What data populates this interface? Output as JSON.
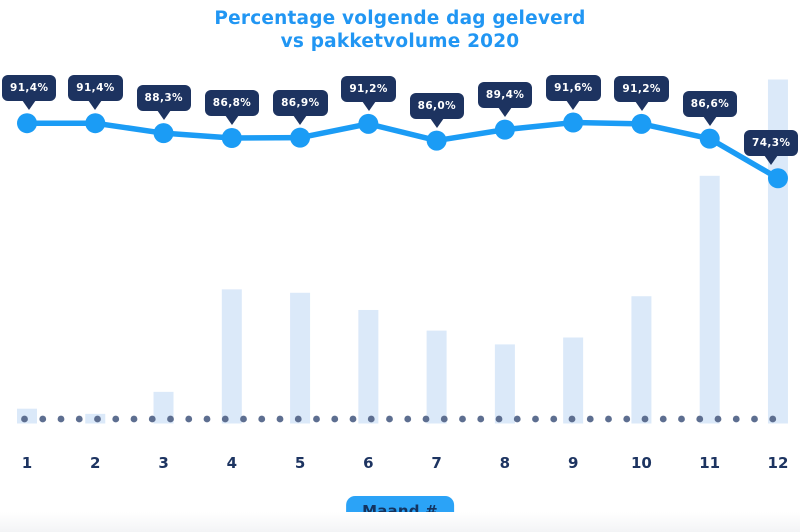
{
  "title": {
    "line1": "Percentage volgende dag geleverd",
    "line2": "vs pakketvolume 2020"
  },
  "x_axis": {
    "badge_label": "Maand #",
    "tick_labels": [
      "1",
      "2",
      "3",
      "4",
      "5",
      "6",
      "7",
      "8",
      "9",
      "10",
      "11",
      "12"
    ]
  },
  "chart_data": {
    "type": "line",
    "title": "Percentage volgende dag geleverd vs pakketvolume 2020",
    "xlabel": "Maand #",
    "ylabel": "",
    "categories": [
      1,
      2,
      3,
      4,
      5,
      6,
      7,
      8,
      9,
      10,
      11,
      12
    ],
    "series": [
      {
        "name": "Percentage volgende dag geleverd",
        "type": "line",
        "unit": "%",
        "values": [
          91.4,
          91.4,
          88.3,
          86.8,
          86.9,
          91.2,
          86.0,
          89.4,
          91.6,
          91.2,
          86.6,
          74.3
        ],
        "point_labels": [
          "91,4%",
          "91,4%",
          "88,3%",
          "86,8%",
          "86,9%",
          "91,2%",
          "86,0%",
          "89,4%",
          "91,6%",
          "91,2%",
          "86,6%",
          "74,3%"
        ],
        "axis_range": [
          0,
          100
        ]
      },
      {
        "name": "Pakketvolume 2020",
        "type": "bar",
        "unit": "relative index, estimated (max month = 100)",
        "values": [
          4.3,
          2.8,
          9.2,
          39,
          38,
          33,
          27,
          23,
          25,
          37,
          72,
          100
        ],
        "axis_range": [
          0,
          100
        ]
      }
    ],
    "legend_position": "none",
    "grid": "dotted horizontal baseline only"
  },
  "colors": {
    "title_blue": "#2196F3",
    "line_blue": "#1B9CF5",
    "tooltip_navy": "#1D3360",
    "tooltip_text": "#FFFFFF",
    "bar_light_blue": "#DBE9F9",
    "baseline_dot_slate": "#5D6E90",
    "tick_navy": "#1D3461",
    "badge_bg": "#2BA3F7",
    "badge_text": "#14335F",
    "background": "#FFFFFF"
  }
}
